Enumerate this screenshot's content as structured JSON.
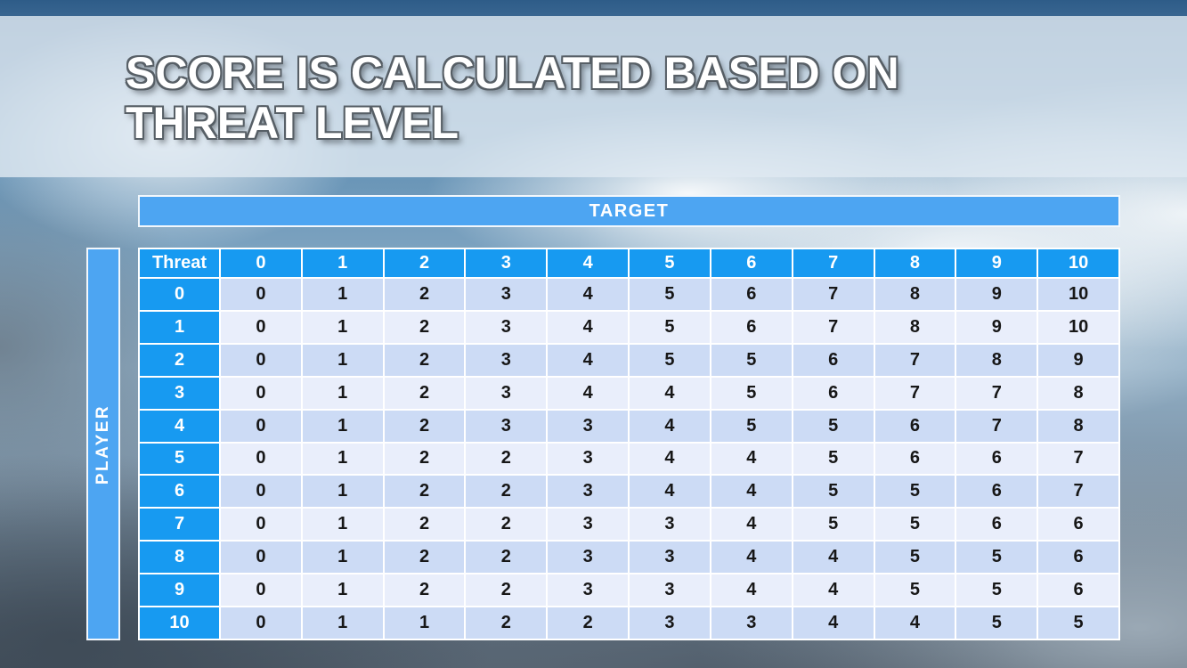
{
  "slide": {
    "title_line1": "SCORE IS CALCULATED BASED ON",
    "title_line2": "THREAT LEVEL",
    "target_label": "TARGET",
    "player_label": "PLAYER"
  },
  "table": {
    "corner_label": "Threat",
    "col_headers": [
      "0",
      "1",
      "2",
      "3",
      "4",
      "5",
      "6",
      "7",
      "8",
      "9",
      "10"
    ],
    "rows": [
      {
        "threat": "0",
        "values": [
          0,
          1,
          2,
          3,
          4,
          5,
          6,
          7,
          8,
          9,
          10
        ]
      },
      {
        "threat": "1",
        "values": [
          0,
          1,
          2,
          3,
          4,
          5,
          6,
          7,
          8,
          9,
          10
        ]
      },
      {
        "threat": "2",
        "values": [
          0,
          1,
          2,
          3,
          4,
          5,
          5,
          6,
          7,
          8,
          9
        ]
      },
      {
        "threat": "3",
        "values": [
          0,
          1,
          2,
          3,
          4,
          4,
          5,
          6,
          7,
          7,
          8
        ]
      },
      {
        "threat": "4",
        "values": [
          0,
          1,
          2,
          3,
          3,
          4,
          5,
          5,
          6,
          7,
          8
        ]
      },
      {
        "threat": "5",
        "values": [
          0,
          1,
          2,
          2,
          3,
          4,
          4,
          5,
          6,
          6,
          7
        ]
      },
      {
        "threat": "6",
        "values": [
          0,
          1,
          2,
          2,
          3,
          4,
          4,
          5,
          5,
          6,
          7
        ]
      },
      {
        "threat": "7",
        "values": [
          0,
          1,
          2,
          2,
          3,
          3,
          4,
          5,
          5,
          6,
          6
        ]
      },
      {
        "threat": "8",
        "values": [
          0,
          1,
          2,
          2,
          3,
          3,
          4,
          4,
          5,
          5,
          6
        ]
      },
      {
        "threat": "9",
        "values": [
          0,
          1,
          2,
          2,
          3,
          3,
          4,
          4,
          5,
          5,
          6
        ]
      },
      {
        "threat": "10",
        "values": [
          0,
          1,
          1,
          2,
          2,
          3,
          3,
          4,
          4,
          5,
          5
        ]
      }
    ]
  },
  "colors": {
    "header_blue": "#179af1",
    "band_blue": "#4da5f2",
    "row_dark": "#ccdbf5",
    "row_light": "#e9eefb",
    "grid_white": "#ffffff",
    "title_fill": "#ffffff",
    "title_outline": "#575f66"
  }
}
